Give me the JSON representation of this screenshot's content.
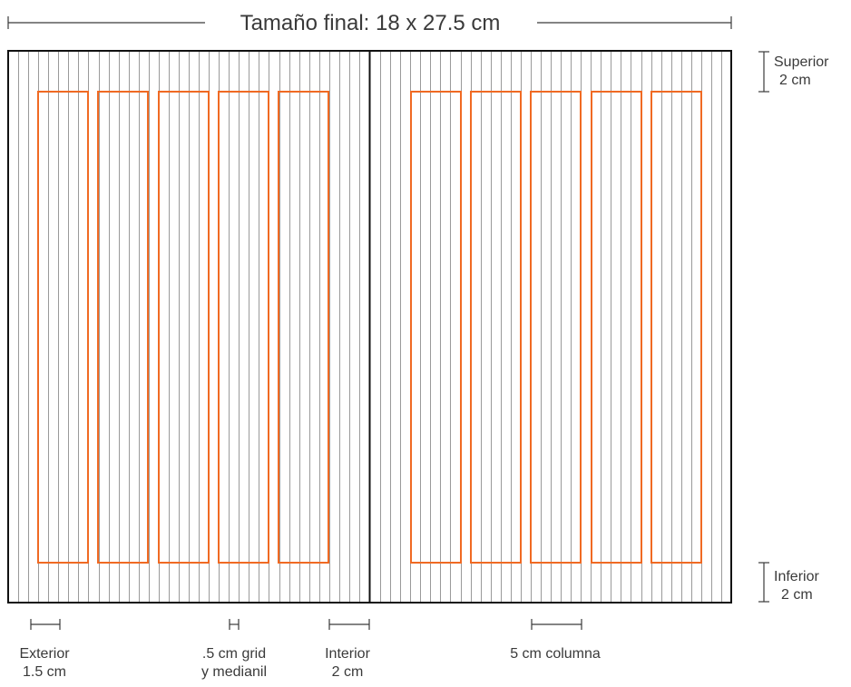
{
  "diagram": {
    "title": "Tamaño final: 18 x 27.5 cm",
    "margins": {
      "superior": {
        "label": "Superior",
        "value": "2 cm"
      },
      "inferior": {
        "label": "Inferior",
        "value": "2 cm"
      },
      "exterior": {
        "label": "Exterior",
        "value": "1.5 cm"
      },
      "interior": {
        "label": "Interior",
        "value": "2 cm"
      }
    },
    "grid": {
      "label_line1": ".5 cm grid",
      "label_line2": "y medianil"
    },
    "column": {
      "label": "5 cm columna"
    },
    "colors": {
      "page_border": "#111111",
      "grid_lines": "#9a9a9a",
      "columns": "#f06a23",
      "text": "#3a3a3a"
    }
  }
}
